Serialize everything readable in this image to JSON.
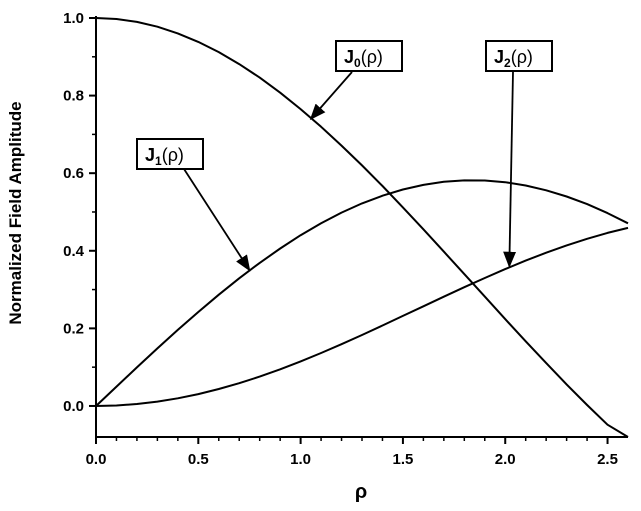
{
  "chart_data": {
    "type": "line",
    "title": "",
    "xlabel": "ρ",
    "ylabel": "Normalized Field Amplitude",
    "xlim": [
      0,
      2.6
    ],
    "ylim": [
      -0.08,
      1.0
    ],
    "xticks": [
      0.0,
      0.5,
      1.0,
      1.5,
      2.0,
      2.5
    ],
    "xtick_labels": [
      "0.0",
      "0.5",
      "1.0",
      "1.5",
      "2.0",
      "2.5"
    ],
    "yticks": [
      0.0,
      0.2,
      0.4,
      0.6,
      0.8,
      1.0
    ],
    "ytick_labels": [
      "0.0",
      "0.2",
      "0.4",
      "0.6",
      "0.8",
      "1.0"
    ],
    "grid": false,
    "legend": "none",
    "series": [
      {
        "name": "J0(ρ)",
        "x": [
          0.0,
          0.1,
          0.2,
          0.3,
          0.4,
          0.5,
          0.6,
          0.7,
          0.8,
          0.9,
          1.0,
          1.1,
          1.2,
          1.3,
          1.4,
          1.5,
          1.6,
          1.7,
          1.8,
          1.9,
          2.0,
          2.1,
          2.2,
          2.3,
          2.4,
          2.5,
          2.6
        ],
        "y": [
          1.0,
          0.9975,
          0.99,
          0.9776,
          0.9604,
          0.9385,
          0.912,
          0.8812,
          0.8463,
          0.8075,
          0.7652,
          0.7196,
          0.6711,
          0.6201,
          0.5669,
          0.5118,
          0.4554,
          0.398,
          0.34,
          0.2818,
          0.2239,
          0.1666,
          0.1104,
          0.0555,
          0.0025,
          -0.0484,
          -0.0968
        ]
      },
      {
        "name": "J1(ρ)",
        "x": [
          0.0,
          0.1,
          0.2,
          0.3,
          0.4,
          0.5,
          0.6,
          0.7,
          0.8,
          0.9,
          1.0,
          1.1,
          1.2,
          1.3,
          1.4,
          1.5,
          1.6,
          1.7,
          1.8,
          1.9,
          2.0,
          2.1,
          2.2,
          2.3,
          2.4,
          2.5,
          2.6
        ],
        "y": [
          0.0,
          0.0499,
          0.0995,
          0.1483,
          0.196,
          0.2423,
          0.2867,
          0.329,
          0.3688,
          0.4059,
          0.4401,
          0.4709,
          0.4983,
          0.522,
          0.5419,
          0.5579,
          0.5699,
          0.5778,
          0.5815,
          0.5812,
          0.5767,
          0.5683,
          0.556,
          0.5399,
          0.5202,
          0.4971,
          0.4708
        ]
      },
      {
        "name": "J2(ρ)",
        "x": [
          0.0,
          0.1,
          0.2,
          0.3,
          0.4,
          0.5,
          0.6,
          0.7,
          0.8,
          0.9,
          1.0,
          1.1,
          1.2,
          1.3,
          1.4,
          1.5,
          1.6,
          1.7,
          1.8,
          1.9,
          2.0,
          2.1,
          2.2,
          2.3,
          2.4,
          2.5,
          2.6
        ],
        "y": [
          0.0,
          0.0012,
          0.005,
          0.0112,
          0.0197,
          0.0306,
          0.0437,
          0.0588,
          0.0758,
          0.0946,
          0.1149,
          0.1366,
          0.1593,
          0.183,
          0.2074,
          0.2321,
          0.257,
          0.2817,
          0.3061,
          0.3299,
          0.3528,
          0.3746,
          0.3951,
          0.4139,
          0.431,
          0.4461,
          0.459
        ]
      }
    ],
    "annotations": [
      {
        "label_main": "J",
        "label_sub": "0",
        "label_tail": "(ρ)",
        "series": "J0(ρ)",
        "arrow_to": [
          1.05,
          0.74
        ]
      },
      {
        "label_main": "J",
        "label_sub": "1",
        "label_tail": "(ρ)",
        "series": "J1(ρ)",
        "arrow_to": [
          0.75,
          0.35
        ]
      },
      {
        "label_main": "J",
        "label_sub": "2",
        "label_tail": "(ρ)",
        "series": "J2(ρ)",
        "arrow_to": [
          2.02,
          0.36
        ]
      }
    ]
  }
}
